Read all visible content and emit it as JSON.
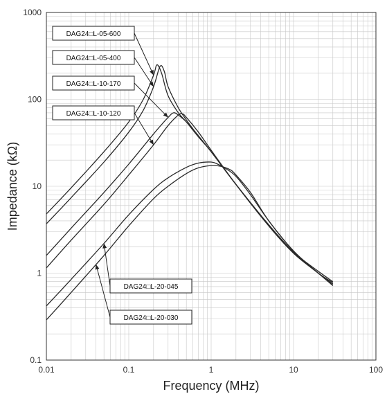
{
  "chart_data": {
    "type": "line",
    "xscale": "log",
    "yscale": "log",
    "xlim": [
      0.01,
      100
    ],
    "ylim": [
      0.1,
      1000
    ],
    "xlabel": "Frequency (MHz)",
    "ylabel": "Impedance (kΩ)",
    "x_ticks": [
      "0.01",
      "0.1",
      "1",
      "10",
      "100"
    ],
    "y_ticks": [
      "0.1",
      "1",
      "10",
      "100",
      "1000"
    ],
    "grid": true,
    "series": [
      {
        "name": "DAG24□L-05-600",
        "x": [
          0.01,
          0.02,
          0.05,
          0.1,
          0.15,
          0.2,
          0.22,
          0.25,
          0.3,
          0.4,
          0.5,
          0.7,
          1,
          2,
          5,
          10,
          20,
          30
        ],
        "y": [
          4.8,
          9.6,
          25,
          55,
          100,
          190,
          250,
          200,
          110,
          70,
          55,
          37,
          25,
          10.5,
          3.6,
          1.75,
          1.05,
          0.8
        ]
      },
      {
        "name": "DAG24□L-05-400",
        "x": [
          0.01,
          0.02,
          0.05,
          0.1,
          0.15,
          0.2,
          0.24,
          0.27,
          0.3,
          0.4,
          0.5,
          0.7,
          1,
          2,
          5,
          10,
          20,
          30
        ],
        "y": [
          3.7,
          7.4,
          19,
          42,
          75,
          140,
          240,
          210,
          140,
          80,
          58,
          38,
          25,
          10.5,
          3.6,
          1.75,
          1.0,
          0.78
        ]
      },
      {
        "name": "DAG24□L-10-170",
        "x": [
          0.01,
          0.02,
          0.05,
          0.1,
          0.2,
          0.3,
          0.35,
          0.4,
          0.5,
          0.7,
          1,
          2,
          5,
          10,
          20,
          30
        ],
        "y": [
          1.6,
          3.3,
          8.5,
          18,
          40,
          62,
          70,
          66,
          55,
          38,
          25,
          10.5,
          3.5,
          1.7,
          1.0,
          0.75
        ]
      },
      {
        "name": "DAG24□L-10-120",
        "x": [
          0.01,
          0.02,
          0.05,
          0.1,
          0.2,
          0.3,
          0.4,
          0.45,
          0.5,
          0.7,
          1,
          2,
          5,
          10,
          20,
          30
        ],
        "y": [
          1.15,
          2.4,
          6.2,
          13.5,
          30,
          50,
          66,
          68,
          62,
          42,
          26,
          10.5,
          3.5,
          1.7,
          1.0,
          0.72
        ]
      },
      {
        "name": "DAG24□L-20-045",
        "x": [
          0.01,
          0.02,
          0.05,
          0.1,
          0.2,
          0.3,
          0.5,
          0.7,
          1,
          1.2,
          1.5,
          2,
          3,
          5,
          10,
          20,
          30
        ],
        "y": [
          0.42,
          0.85,
          2.2,
          4.7,
          9.2,
          12.5,
          16.5,
          18.5,
          19,
          18,
          16,
          13,
          8,
          4,
          1.8,
          1.0,
          0.75
        ]
      },
      {
        "name": "DAG24□L-20-030",
        "x": [
          0.01,
          0.02,
          0.05,
          0.1,
          0.2,
          0.3,
          0.5,
          0.7,
          1,
          1.3,
          1.7,
          2,
          3,
          5,
          10,
          20,
          30
        ],
        "y": [
          0.29,
          0.6,
          1.6,
          3.5,
          7.2,
          10,
          14,
          16.3,
          17.3,
          17,
          15.5,
          13.5,
          8.5,
          4,
          1.8,
          1.0,
          0.72
        ]
      }
    ],
    "annotations": [
      {
        "text": "DAG24□L-05-600",
        "series": 0,
        "at_x": 0.2
      },
      {
        "text": "DAG24□L-05-400",
        "series": 1,
        "at_x": 0.2
      },
      {
        "text": "DAG24□L-10-170",
        "series": 2,
        "at_x": 0.3
      },
      {
        "text": "DAG24□L-10-120",
        "series": 3,
        "at_x": 0.2
      },
      {
        "text": "DAG24□L-20-045",
        "series": 4,
        "at_x": 0.05
      },
      {
        "text": "DAG24□L-20-030",
        "series": 5,
        "at_x": 0.04
      }
    ]
  }
}
